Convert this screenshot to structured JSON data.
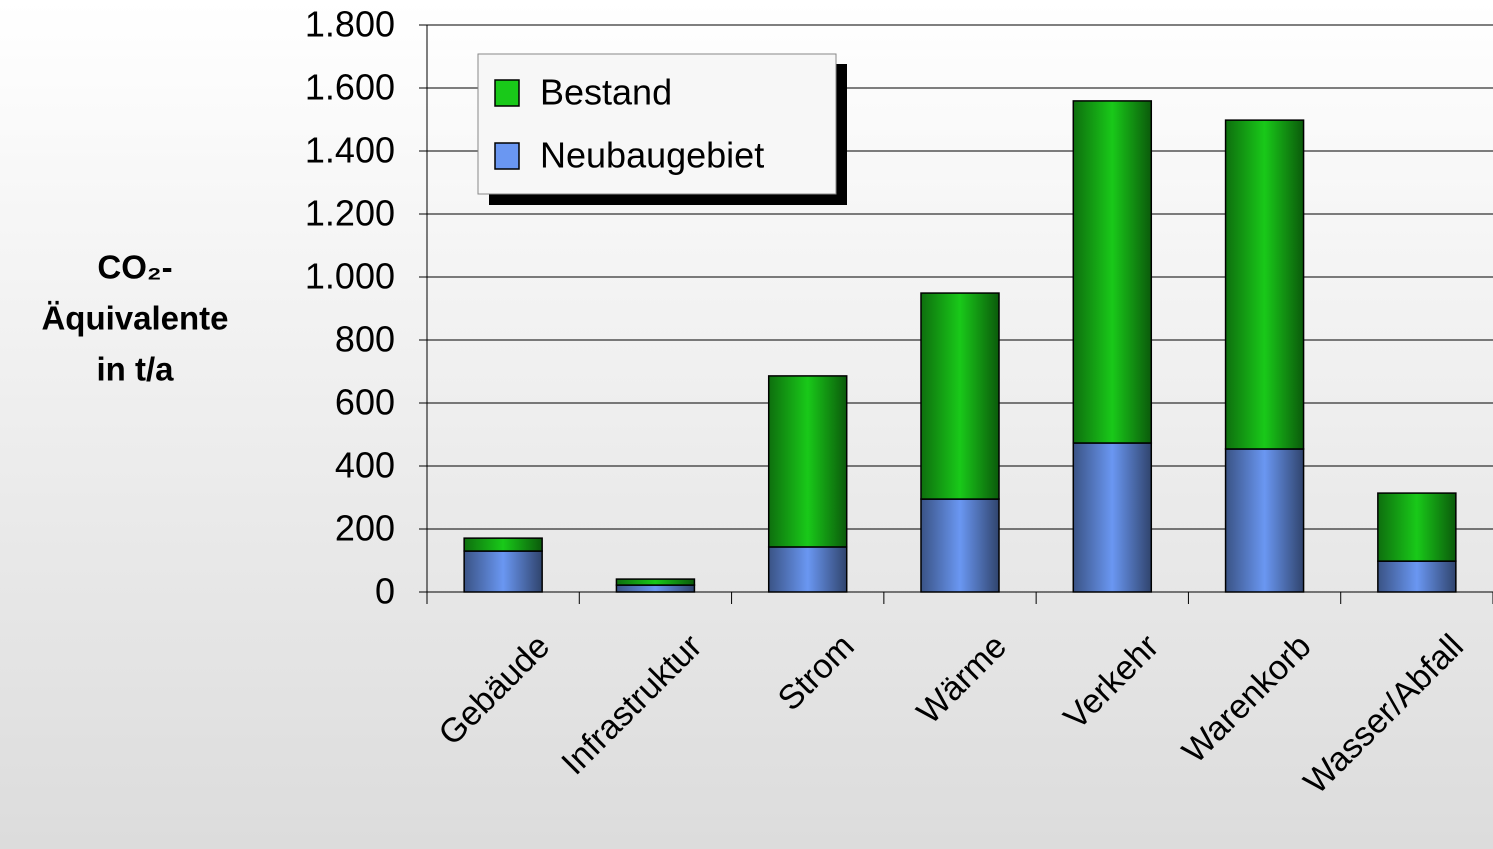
{
  "chart_data": {
    "type": "stacked-bar",
    "ylabel_lines": [
      "CO₂-",
      "Äquivalente",
      "in t/a"
    ],
    "categories": [
      "Gebäude",
      "Infrastruktur",
      "Strom",
      "Wärme",
      "Verkehr",
      "Warenkorb",
      "Wasser/Abfall"
    ],
    "series": [
      {
        "name": "Neubaugebiet",
        "color": "#6a97f2",
        "values": [
          130,
          22,
          143,
          295,
          473,
          454,
          98
        ]
      },
      {
        "name": "Bestand",
        "color": "#19c919",
        "values": [
          41,
          19,
          543,
          654,
          1086,
          1044,
          216
        ]
      }
    ],
    "ylim": [
      0,
      1800
    ],
    "yticks": [
      0,
      200,
      400,
      600,
      800,
      {
        "value": 1000,
        "label": "1.000"
      },
      {
        "value": 1200,
        "label": "1.200"
      },
      {
        "value": 1400,
        "label": "1.400"
      },
      {
        "value": 1600,
        "label": "1.600"
      },
      {
        "value": 1800,
        "label": "1.800"
      }
    ],
    "grid": true,
    "legend": "upper left"
  }
}
